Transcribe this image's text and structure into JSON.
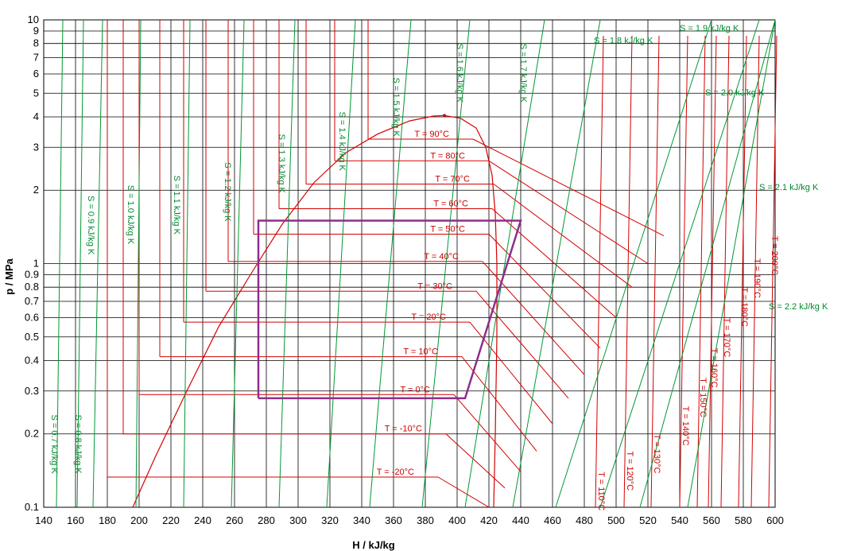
{
  "chart_data": {
    "type": "line",
    "title": "",
    "xlabel": "H / kJ/kg",
    "ylabel": "p / MPa",
    "x_scale": "linear",
    "y_scale": "log",
    "xlim": [
      140,
      600
    ],
    "ylim": [
      0.1,
      10
    ],
    "grid": true,
    "x_ticks": [
      "140",
      "160",
      "180",
      "200",
      "220",
      "240",
      "260",
      "280",
      "300",
      "320",
      "340",
      "360",
      "380",
      "400",
      "420",
      "440",
      "460",
      "480",
      "500",
      "520",
      "540",
      "560",
      "580",
      "600"
    ],
    "y_ticks": [
      {
        "value": 0.1,
        "label": "0.1"
      },
      {
        "value": 0.2,
        "label": "0.2"
      },
      {
        "value": 0.3,
        "label": "0.3"
      },
      {
        "value": 0.4,
        "label": "0.4"
      },
      {
        "value": 0.5,
        "label": "0.5"
      },
      {
        "value": 0.6,
        "label": "0.6"
      },
      {
        "value": 0.7,
        "label": "0.7"
      },
      {
        "value": 0.8,
        "label": "0.8"
      },
      {
        "value": 0.9,
        "label": "0.9"
      },
      {
        "value": 1,
        "label": "1"
      },
      {
        "value": 2,
        "label": "2"
      },
      {
        "value": 3,
        "label": "3"
      },
      {
        "value": 4,
        "label": "4"
      },
      {
        "value": 5,
        "label": "5"
      },
      {
        "value": 6,
        "label": "6"
      },
      {
        "value": 7,
        "label": "7"
      },
      {
        "value": 8,
        "label": "8"
      },
      {
        "value": 9,
        "label": "9"
      },
      {
        "value": 10,
        "label": "10"
      }
    ],
    "colors": {
      "isotherm": "#d40000",
      "isentrope": "#009933",
      "saturation": "#d40000",
      "cycle": "#8e2e8a",
      "special": "#f0e000",
      "grid": "#000000"
    },
    "critical_point": {
      "h": 392,
      "p": 4.05
    },
    "saturation_dome": {
      "liquid": [
        [
          196,
          0.1
        ],
        [
          210,
          0.16
        ],
        [
          230,
          0.3
        ],
        [
          250,
          0.55
        ],
        [
          270,
          0.9
        ],
        [
          290,
          1.45
        ],
        [
          310,
          2.15
        ],
        [
          330,
          2.85
        ],
        [
          350,
          3.4
        ],
        [
          370,
          3.85
        ],
        [
          385,
          4.03
        ],
        [
          392,
          4.05
        ]
      ],
      "vapor": [
        [
          392,
          4.05
        ],
        [
          402,
          3.95
        ],
        [
          412,
          3.6
        ],
        [
          418,
          3.0
        ],
        [
          422,
          2.3
        ],
        [
          424,
          1.6
        ],
        [
          425,
          1.0
        ],
        [
          425,
          0.5
        ],
        [
          424,
          0.2
        ],
        [
          423,
          0.1
        ]
      ]
    },
    "isotherms": [
      {
        "label": "T = -20°C",
        "liquid_h": 180,
        "vapor_h": 388,
        "p": 0.133,
        "superheat": [
          [
            420,
            0.1
          ]
        ]
      },
      {
        "label": "T = -10°C",
        "liquid_h": 190,
        "vapor_h": 393,
        "p": 0.2,
        "superheat": [
          [
            430,
            0.12
          ]
        ]
      },
      {
        "label": "T = 0°C",
        "liquid_h": 200,
        "vapor_h": 398,
        "p": 0.29,
        "superheat": [
          [
            440,
            0.14
          ]
        ]
      },
      {
        "label": "T = 10°C",
        "liquid_h": 213,
        "vapor_h": 403,
        "p": 0.415,
        "superheat": [
          [
            450,
            0.17
          ]
        ]
      },
      {
        "label": "T = 20°C",
        "liquid_h": 228,
        "vapor_h": 408,
        "p": 0.575,
        "superheat": [
          [
            460,
            0.22
          ]
        ]
      },
      {
        "label": "T = 30°C",
        "liquid_h": 242,
        "vapor_h": 412,
        "p": 0.77,
        "superheat": [
          [
            470,
            0.28
          ]
        ]
      },
      {
        "label": "T = 40°C",
        "liquid_h": 256,
        "vapor_h": 416,
        "p": 1.02,
        "superheat": [
          [
            480,
            0.35
          ]
        ]
      },
      {
        "label": "T = 50°C",
        "liquid_h": 272,
        "vapor_h": 420,
        "p": 1.32,
        "superheat": [
          [
            490,
            0.45
          ]
        ]
      },
      {
        "label": "T = 60°C",
        "liquid_h": 288,
        "vapor_h": 422,
        "p": 1.68,
        "superheat": [
          [
            500,
            0.6
          ]
        ]
      },
      {
        "label": "T = 70°C",
        "liquid_h": 305,
        "vapor_h": 423,
        "p": 2.12,
        "superheat": [
          [
            510,
            0.8
          ]
        ]
      },
      {
        "label": "T = 80°C",
        "liquid_h": 323,
        "vapor_h": 420,
        "p": 2.64,
        "superheat": [
          [
            520,
            1.0
          ]
        ]
      },
      {
        "label": "T = 90°C",
        "liquid_h": 344,
        "vapor_h": 410,
        "p": 3.24,
        "superheat": [
          [
            530,
            1.3
          ]
        ]
      }
    ],
    "isotherm_labels_high": [
      {
        "label": "T = 110°C",
        "h": 487,
        "p": 0.14
      },
      {
        "label": "T = 120°C",
        "h": 505,
        "p": 0.17
      },
      {
        "label": "T = 130°C",
        "h": 522,
        "p": 0.2
      },
      {
        "label": "T = 140°C",
        "h": 540,
        "p": 0.26
      },
      {
        "label": "T = 150°C",
        "h": 551,
        "p": 0.34
      },
      {
        "label": "T = 160°C",
        "h": 558,
        "p": 0.45
      },
      {
        "label": "T = 170°C",
        "h": 566,
        "p": 0.6
      },
      {
        "label": "T = 180°C",
        "h": 577,
        "p": 0.8
      },
      {
        "label": "T = 190°C",
        "h": 585,
        "p": 1.05
      },
      {
        "label": "T = 200°C",
        "h": 596,
        "p": 1.3
      }
    ],
    "isentropes": [
      {
        "label": "S = 0.7 kJ/kg K",
        "h_lo": 148,
        "h_hi": 152,
        "label_h": 145,
        "label_p": 0.24
      },
      {
        "label": "S = 0.8 kJ/kg K",
        "h_lo": 161,
        "h_hi": 165,
        "label_h": 160,
        "label_p": 0.24
      },
      {
        "label": "S = 0.9 kJ/kg K",
        "h_lo": 171,
        "h_hi": 177,
        "label_h": 168,
        "label_p": 1.9
      },
      {
        "label": "S = 1.0 kJ/kg K",
        "h_lo": 198,
        "h_hi": 201,
        "label_h": 193,
        "label_p": 2.1
      },
      {
        "label": "S = 1.1 kJ/kg K",
        "h_lo": 228,
        "h_hi": 232,
        "label_h": 222,
        "label_p": 2.3
      },
      {
        "label": "S = 1.2 kJ/kg K",
        "h_lo": 258,
        "h_hi": 266,
        "label_h": 254,
        "label_p": 2.6
      },
      {
        "label": "S = 1.3 kJ/kg K",
        "h_lo": 288,
        "h_hi": 298,
        "label_h": 288,
        "label_p": 3.4
      },
      {
        "label": "S = 1.4 kJ/kg K",
        "h_lo": 318,
        "h_hi": 336,
        "label_h": 326,
        "label_p": 4.2
      },
      {
        "label": "S = 1.5 kJ/kg K",
        "h_lo": 345,
        "h_hi": 371,
        "label_h": 360,
        "label_p": 5.8
      },
      {
        "label": "S = 1.6 kJ/kg K",
        "h_lo": 378,
        "h_hi": 408,
        "label_h": 400,
        "label_p": 8.0
      },
      {
        "label": "S = 1.7 kJ/kg K",
        "h_lo": 405,
        "h_hi": 455,
        "label_h": 440,
        "label_p": 8.0
      },
      {
        "label": "S = 1.8 kJ/kg K",
        "h_lo": 435,
        "h_hi": 490,
        "label_h": 486,
        "label_p": 8.0
      },
      {
        "label": "S = 1.9 kJ/kg K",
        "h_lo": 462,
        "h_hi": 560,
        "label_h": 540,
        "label_p": 9.0
      },
      {
        "label": "S = 2.0 kJ/kg K",
        "h_lo": 490,
        "h_hi": 590,
        "label_h": 556,
        "label_p": 4.9
      },
      {
        "label": "S = 2.1 kJ/kg K",
        "h_lo": 515,
        "h_hi": 600,
        "label_h": 590,
        "label_p": 2.0
      },
      {
        "label": "S = 2.2 kJ/kg K",
        "h_lo": 545,
        "h_hi": 600,
        "label_h": 596,
        "label_p": 0.65
      }
    ],
    "cycle": {
      "label": "",
      "points": [
        [
          275,
          0.28
        ],
        [
          405,
          0.28
        ],
        [
          440,
          1.5
        ],
        [
          275,
          1.5
        ],
        [
          275,
          0.28
        ]
      ]
    }
  }
}
